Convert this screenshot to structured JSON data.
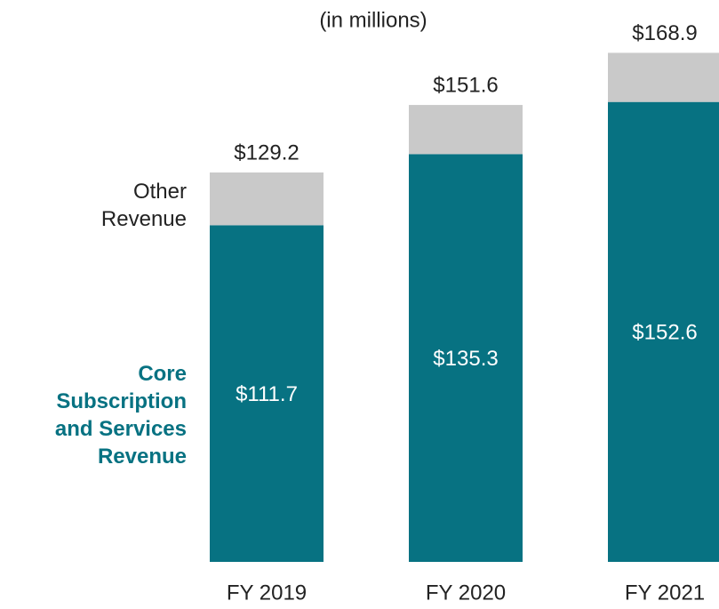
{
  "chart_data": {
    "type": "stacked_bar",
    "subtitle": "(in millions)",
    "categories": [
      "FY 2019",
      "FY 2020",
      "FY 2021"
    ],
    "series": [
      {
        "name": "Core Subscription and Services Revenue",
        "color": "#077282",
        "values": [
          111.7,
          135.3,
          152.6
        ],
        "value_labels": [
          "$111.7",
          "$135.3",
          "$152.6"
        ]
      },
      {
        "name": "Other Revenue",
        "color": "#c9c9c9",
        "values": [
          17.5,
          16.3,
          16.3
        ]
      }
    ],
    "totals": [
      129.2,
      151.6,
      168.9
    ],
    "total_labels": [
      "$129.2",
      "$151.6",
      "$168.9"
    ]
  }
}
